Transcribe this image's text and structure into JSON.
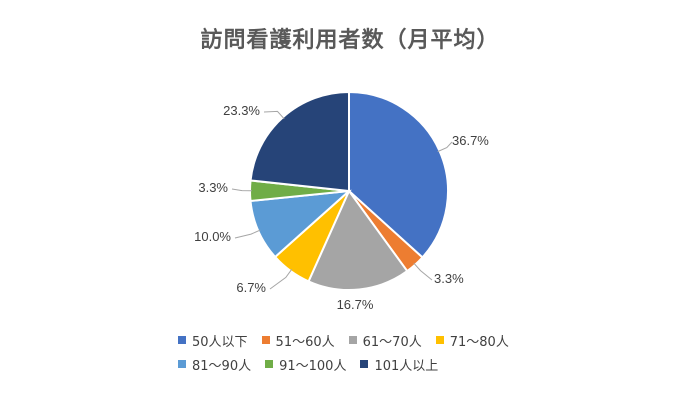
{
  "chart_data": {
    "type": "pie",
    "title": "訪問看護利用者数（月平均）",
    "categories": [
      "50人以下",
      "51〜60人",
      "61〜70人",
      "71〜80人",
      "81〜90人",
      "91〜100人",
      "101人以上"
    ],
    "values": [
      36.7,
      3.3,
      16.7,
      6.7,
      10.0,
      3.3,
      23.3
    ],
    "labels": [
      "36.7%",
      "3.3%",
      "16.7%",
      "6.7%",
      "10.0%",
      "3.3%",
      "23.3%"
    ],
    "colors": [
      "#4472C4",
      "#ED7D31",
      "#A5A5A5",
      "#FFC000",
      "#5B9BD5",
      "#70AD47",
      "#264478"
    ],
    "legend_position": "bottom",
    "start_angle": "12 o'clock",
    "direction": "clockwise"
  }
}
